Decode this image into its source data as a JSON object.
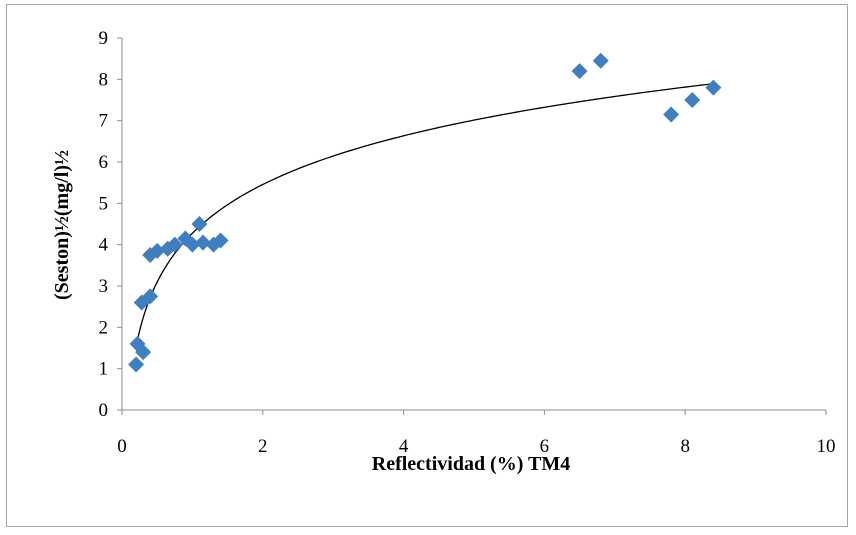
{
  "chart_data": {
    "type": "scatter",
    "xlabel": "Reflectividad (%) TM4",
    "ylabel": "(Seston)½(mg/l)½",
    "xlim": [
      0,
      10
    ],
    "ylim": [
      0,
      9
    ],
    "x_ticks": [
      "0",
      "2",
      "4",
      "6",
      "8",
      "10"
    ],
    "y_ticks": [
      "0",
      "1",
      "2",
      "3",
      "4",
      "5",
      "6",
      "7",
      "8",
      "9"
    ],
    "grid": false,
    "legend": "none",
    "marker": "diamond",
    "marker_color": "#3f7fbf",
    "trendline": {
      "type": "logarithmic",
      "color": "#000000",
      "x_range": [
        0.22,
        8.4
      ]
    },
    "series": [
      {
        "points": [
          {
            "x": 0.2,
            "y": 1.1
          },
          {
            "x": 0.22,
            "y": 1.6
          },
          {
            "x": 0.3,
            "y": 1.4
          },
          {
            "x": 0.28,
            "y": 2.6
          },
          {
            "x": 0.4,
            "y": 2.75
          },
          {
            "x": 0.4,
            "y": 3.75
          },
          {
            "x": 0.5,
            "y": 3.85
          },
          {
            "x": 0.65,
            "y": 3.9
          },
          {
            "x": 0.75,
            "y": 4.0
          },
          {
            "x": 0.9,
            "y": 4.15
          },
          {
            "x": 1.0,
            "y": 4.0
          },
          {
            "x": 1.1,
            "y": 4.5
          },
          {
            "x": 1.15,
            "y": 4.05
          },
          {
            "x": 1.3,
            "y": 4.0
          },
          {
            "x": 1.4,
            "y": 4.1
          },
          {
            "x": 6.5,
            "y": 8.2
          },
          {
            "x": 6.8,
            "y": 8.45
          },
          {
            "x": 7.8,
            "y": 7.15
          },
          {
            "x": 8.1,
            "y": 7.5
          },
          {
            "x": 8.4,
            "y": 7.8
          }
        ]
      }
    ]
  }
}
